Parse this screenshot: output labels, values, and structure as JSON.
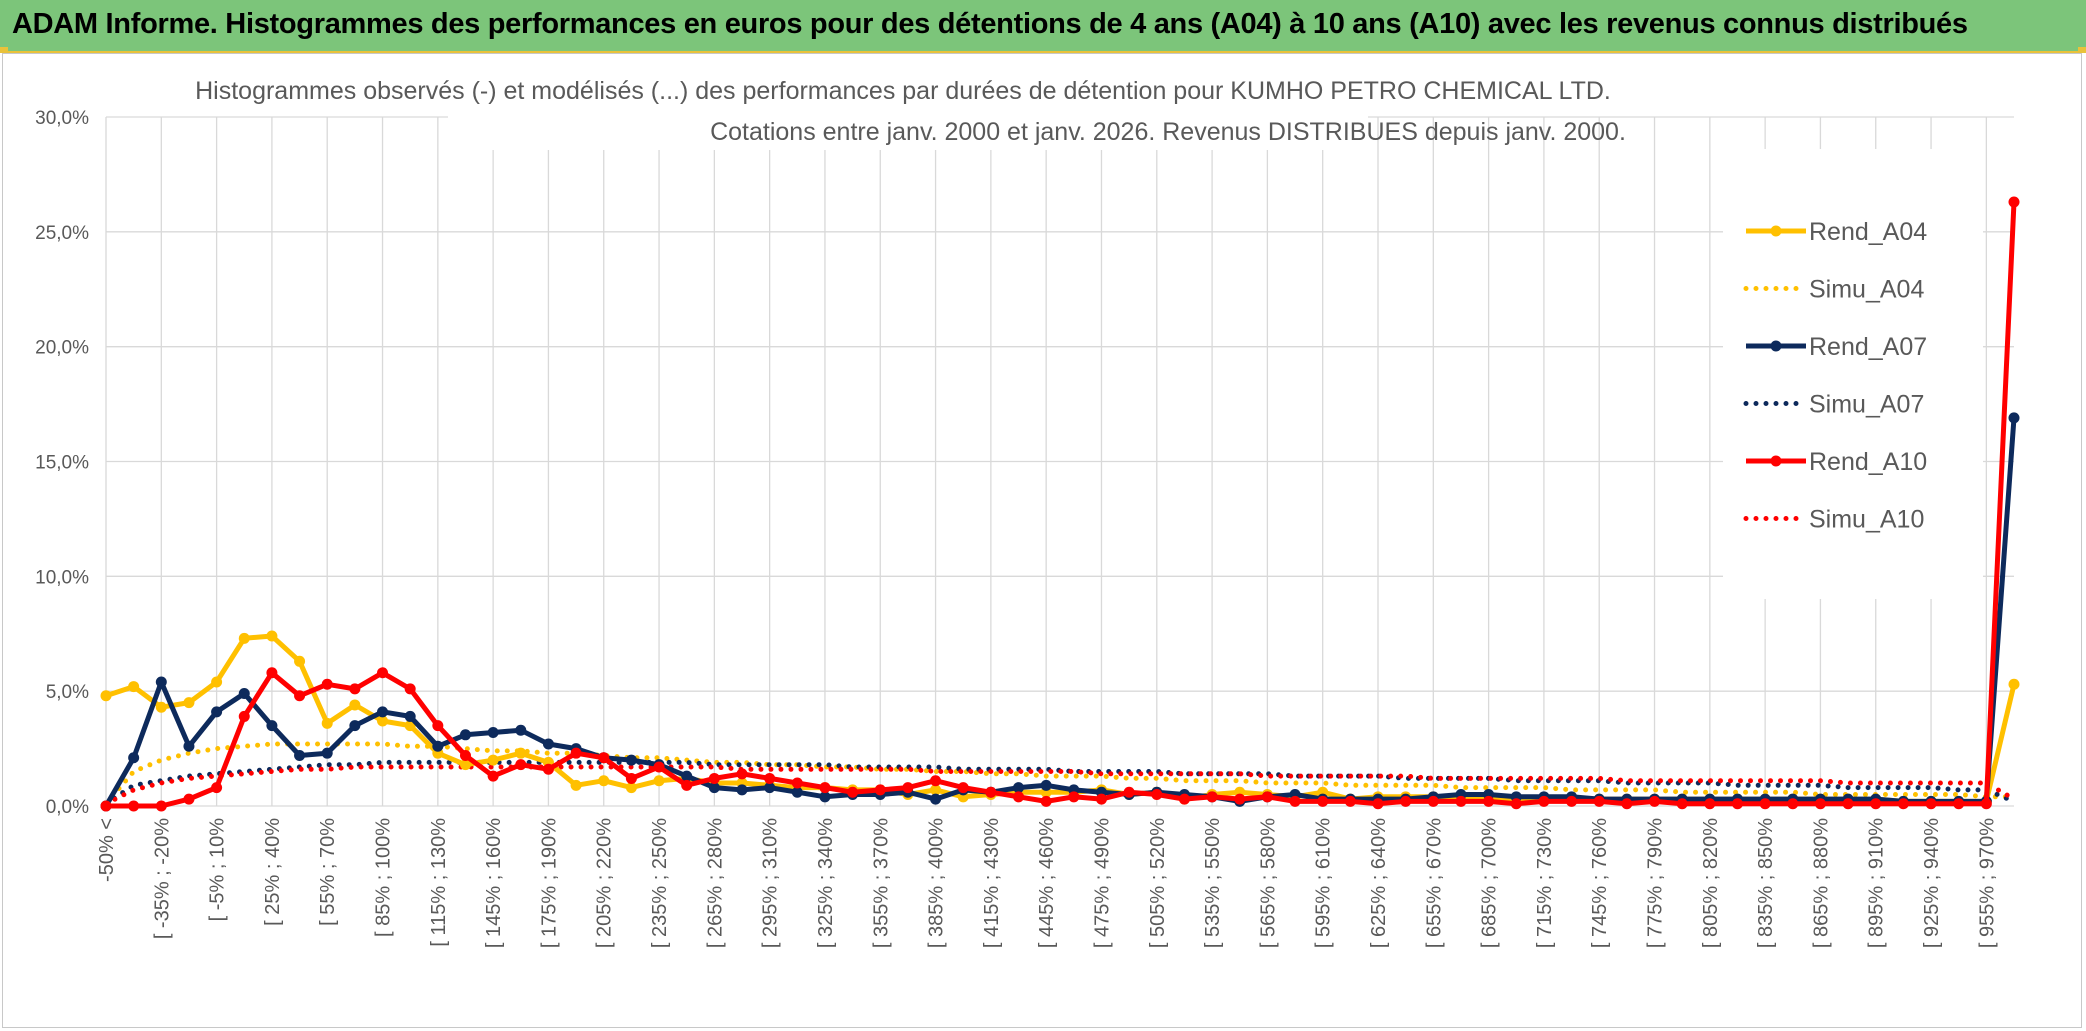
{
  "header": {
    "title": "ADAM Informe. Histogrammes des performances en euros pour des détentions de 4 ans (A04) à 10 ans (A10) avec les revenus connus distribués"
  },
  "colors": {
    "banner": "#7cc57a",
    "A04": "#ffc000",
    "A07": "#0d2a5c",
    "A10": "#ff0000",
    "grid": "#d9d9d9",
    "axis_text": "#595959"
  },
  "chart_data": {
    "type": "line",
    "title_line1": "Histogrammes observés (-) et modélisés (...) des performances par durées de détention pour KUMHO PETRO CHEMICAL LTD.",
    "title_line2": "Cotations entre janv. 2000 et janv. 2026. Revenus DISTRIBUES depuis janv. 2000.",
    "ylim": [
      0,
      30
    ],
    "yticks": [
      "0,0%",
      "5,0%",
      "10,0%",
      "15,0%",
      "20,0%",
      "25,0%",
      "30,0%"
    ],
    "x_tick_labels": [
      "-50% <",
      "[ -35% ; -20%",
      "[ -5% ; 10%",
      "[ 25% ; 40%",
      "[ 55% ; 70%",
      "[ 85% ; 100%",
      "[ 115% ; 130%",
      "[ 145% ; 160%",
      "[ 175% ; 190%",
      "[ 205% ; 220%",
      "[ 235% ; 250%",
      "[ 265% ; 280%",
      "[ 295% ; 310%",
      "[ 325% ; 340%",
      "[ 355% ; 370%",
      "[ 385% ; 400%",
      "[ 415% ; 430%",
      "[ 445% ; 460%",
      "[ 475% ; 490%",
      "[ 505% ; 520%",
      "[ 535% ; 550%",
      "[ 565% ; 580%",
      "[ 595% ; 610%",
      "[ 625% ; 640%",
      "[ 655% ; 670%",
      "[ 685% ; 700%",
      "[ 715% ; 730%",
      "[ 745% ; 760%",
      "[ 775% ; 790%",
      "[ 805% ; 820%",
      "[ 835% ; 850%",
      "[ 865% ; 880%",
      "[ 895% ; 910%",
      "[ 925% ; 940%",
      "[ 955% ; 970%"
    ],
    "n_categories": 70,
    "series": [
      {
        "name": "Rend_A04",
        "style": "solid",
        "color": "#ffc000",
        "values": [
          4.8,
          5.2,
          4.3,
          4.5,
          5.4,
          7.3,
          7.4,
          6.3,
          3.6,
          4.4,
          3.7,
          3.5,
          2.3,
          1.8,
          2.0,
          2.3,
          1.9,
          0.9,
          1.1,
          0.8,
          1.1,
          1.2,
          1.0,
          1.0,
          0.9,
          0.8,
          0.8,
          0.7,
          0.7,
          0.5,
          0.7,
          0.4,
          0.5,
          0.6,
          0.6,
          0.6,
          0.7,
          0.5,
          0.6,
          0.3,
          0.5,
          0.6,
          0.5,
          0.4,
          0.6,
          0.3,
          0.4,
          0.4,
          0.4,
          0.3,
          0.4,
          0.3,
          0.3,
          0.3,
          0.3,
          0.3,
          0.3,
          0.3,
          0.3,
          0.3,
          0.3,
          0.3,
          0.3,
          0.3,
          0.3,
          0.2,
          0.2,
          0.2,
          0.2,
          5.3
        ]
      },
      {
        "name": "Simu_A04",
        "style": "dotted",
        "color": "#ffc000",
        "values": [
          0.1,
          1.5,
          2.0,
          2.3,
          2.5,
          2.6,
          2.7,
          2.7,
          2.7,
          2.7,
          2.7,
          2.6,
          2.6,
          2.5,
          2.4,
          2.4,
          2.3,
          2.3,
          2.2,
          2.1,
          2.1,
          2.0,
          1.9,
          1.9,
          1.8,
          1.8,
          1.7,
          1.7,
          1.6,
          1.6,
          1.5,
          1.5,
          1.4,
          1.4,
          1.3,
          1.3,
          1.3,
          1.2,
          1.2,
          1.1,
          1.1,
          1.1,
          1.0,
          1.0,
          1.0,
          0.9,
          0.9,
          0.9,
          0.9,
          0.8,
          0.8,
          0.8,
          0.8,
          0.7,
          0.7,
          0.7,
          0.7,
          0.6,
          0.6,
          0.6,
          0.6,
          0.6,
          0.5,
          0.5,
          0.5,
          0.5,
          0.5,
          0.5,
          0.4,
          0.4
        ]
      },
      {
        "name": "Rend_A07",
        "style": "solid",
        "color": "#0d2a5c",
        "values": [
          0.0,
          2.1,
          5.4,
          2.6,
          4.1,
          4.9,
          3.5,
          2.2,
          2.3,
          3.5,
          4.1,
          3.9,
          2.6,
          3.1,
          3.2,
          3.3,
          2.7,
          2.5,
          2.1,
          2.0,
          1.8,
          1.3,
          0.8,
          0.7,
          0.8,
          0.6,
          0.4,
          0.5,
          0.5,
          0.6,
          0.3,
          0.7,
          0.6,
          0.8,
          0.9,
          0.7,
          0.6,
          0.5,
          0.6,
          0.5,
          0.4,
          0.2,
          0.4,
          0.5,
          0.3,
          0.3,
          0.3,
          0.3,
          0.4,
          0.5,
          0.5,
          0.4,
          0.4,
          0.4,
          0.3,
          0.3,
          0.3,
          0.3,
          0.3,
          0.3,
          0.3,
          0.3,
          0.3,
          0.3,
          0.3,
          0.2,
          0.2,
          0.2,
          0.2,
          16.9
        ]
      },
      {
        "name": "Simu_A07",
        "style": "dotted",
        "color": "#0d2a5c",
        "values": [
          0.1,
          0.9,
          1.1,
          1.3,
          1.4,
          1.5,
          1.6,
          1.7,
          1.8,
          1.8,
          1.9,
          1.9,
          1.9,
          1.9,
          1.9,
          1.9,
          1.9,
          1.9,
          1.9,
          1.9,
          1.9,
          1.9,
          1.8,
          1.8,
          1.8,
          1.8,
          1.8,
          1.7,
          1.7,
          1.7,
          1.7,
          1.6,
          1.6,
          1.6,
          1.6,
          1.5,
          1.5,
          1.5,
          1.5,
          1.4,
          1.4,
          1.4,
          1.4,
          1.3,
          1.3,
          1.3,
          1.3,
          1.2,
          1.2,
          1.2,
          1.2,
          1.1,
          1.1,
          1.1,
          1.1,
          1.0,
          1.0,
          1.0,
          1.0,
          0.9,
          0.9,
          0.9,
          0.9,
          0.8,
          0.8,
          0.8,
          0.8,
          0.7,
          0.7,
          0.2
        ]
      },
      {
        "name": "Rend_A10",
        "style": "solid",
        "color": "#ff0000",
        "values": [
          0.0,
          0.0,
          0.0,
          0.3,
          0.8,
          3.9,
          5.8,
          4.8,
          5.3,
          5.1,
          5.8,
          5.1,
          3.5,
          2.2,
          1.3,
          1.8,
          1.6,
          2.3,
          2.1,
          1.2,
          1.7,
          0.9,
          1.2,
          1.4,
          1.2,
          1.0,
          0.8,
          0.6,
          0.7,
          0.8,
          1.1,
          0.8,
          0.6,
          0.4,
          0.2,
          0.4,
          0.3,
          0.6,
          0.5,
          0.3,
          0.4,
          0.3,
          0.4,
          0.2,
          0.2,
          0.2,
          0.1,
          0.2,
          0.2,
          0.2,
          0.2,
          0.1,
          0.2,
          0.2,
          0.2,
          0.1,
          0.2,
          0.1,
          0.1,
          0.1,
          0.1,
          0.1,
          0.1,
          0.1,
          0.1,
          0.1,
          0.1,
          0.1,
          0.1,
          26.3
        ]
      },
      {
        "name": "Simu_A10",
        "style": "dotted",
        "color": "#ff0000",
        "values": [
          0.1,
          0.7,
          1.0,
          1.2,
          1.3,
          1.4,
          1.5,
          1.6,
          1.6,
          1.7,
          1.7,
          1.7,
          1.7,
          1.7,
          1.7,
          1.7,
          1.7,
          1.7,
          1.7,
          1.7,
          1.7,
          1.7,
          1.7,
          1.6,
          1.6,
          1.6,
          1.6,
          1.6,
          1.6,
          1.6,
          1.5,
          1.5,
          1.5,
          1.5,
          1.5,
          1.5,
          1.4,
          1.4,
          1.4,
          1.4,
          1.4,
          1.4,
          1.3,
          1.3,
          1.3,
          1.3,
          1.3,
          1.3,
          1.2,
          1.2,
          1.2,
          1.2,
          1.2,
          1.2,
          1.2,
          1.1,
          1.1,
          1.1,
          1.1,
          1.1,
          1.1,
          1.1,
          1.1,
          1.0,
          1.0,
          1.0,
          1.0,
          1.0,
          1.0,
          0.3
        ]
      }
    ],
    "legend": [
      "Rend_A04",
      "Simu_A04",
      "Rend_A07",
      "Simu_A07",
      "Rend_A10",
      "Simu_A10"
    ],
    "legend_position": "right"
  }
}
